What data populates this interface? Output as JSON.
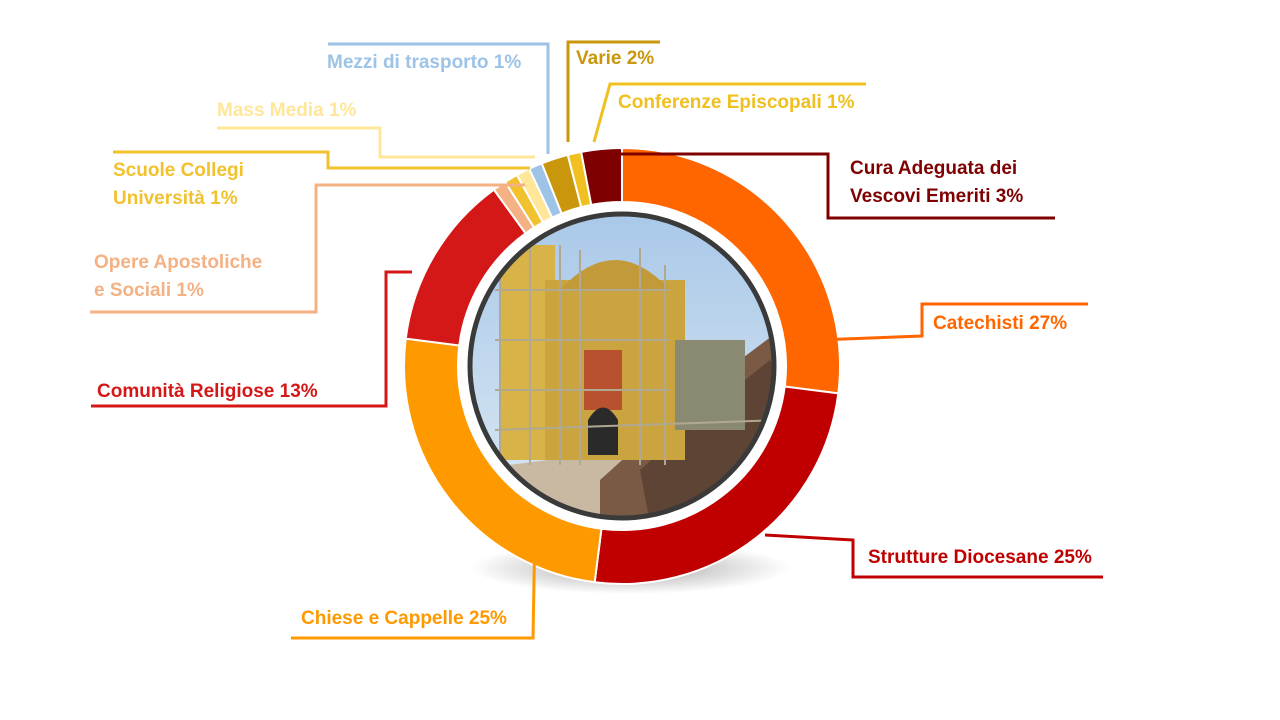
{
  "chart_data": {
    "type": "pie",
    "style": "donut",
    "center_image": "church-under-restoration-photo",
    "slices": [
      {
        "key": "catechisti",
        "lines": [
          "Catechisti 27%"
        ],
        "value": 27,
        "color": "#FF6600"
      },
      {
        "key": "strutture",
        "lines": [
          "Strutture Diocesane 25%"
        ],
        "value": 25,
        "color": "#C00000"
      },
      {
        "key": "chiese",
        "lines": [
          "Chiese e Cappelle 25%"
        ],
        "value": 25,
        "color": "#FF9900"
      },
      {
        "key": "comunita",
        "lines": [
          "Comunità Religiose 13%"
        ],
        "value": 13,
        "color": "#D41818"
      },
      {
        "key": "opere",
        "lines": [
          "Opere Apostoliche",
          "e Sociali 1%"
        ],
        "value": 1,
        "color": "#F4B183"
      },
      {
        "key": "scuole",
        "lines": [
          "Scuole Collegi",
          "Università 1%"
        ],
        "value": 1,
        "color": "#F2C12E"
      },
      {
        "key": "massmedia",
        "lines": [
          "Mass Media 1%"
        ],
        "value": 1,
        "color": "#FFE699"
      },
      {
        "key": "mezzi",
        "lines": [
          "Mezzi di trasporto 1%"
        ],
        "value": 1,
        "color": "#9DC3E6"
      },
      {
        "key": "varie",
        "lines": [
          "Varie 2%"
        ],
        "value": 2,
        "color": "#C9960C"
      },
      {
        "key": "conferenze",
        "lines": [
          "Conferenze Episcopali 1%"
        ],
        "value": 1,
        "color": "#F0C020"
      },
      {
        "key": "cura",
        "lines": [
          "Cura Adeguata dei",
          "Vescovi Emeriti 3%"
        ],
        "value": 3,
        "color": "#7F0000"
      }
    ]
  }
}
